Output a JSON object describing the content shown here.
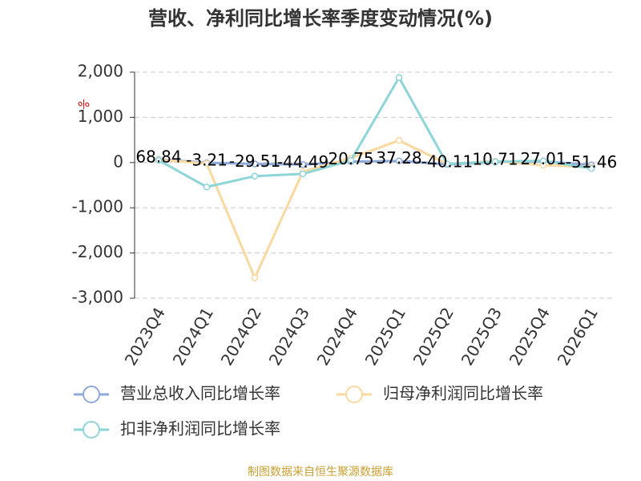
{
  "chart_data": {
    "type": "line",
    "title": "营收、净利同比增长率季度变动情况(%)",
    "y_label": "%",
    "categories": [
      "2023Q4",
      "2024Q1",
      "2024Q2",
      "2024Q3",
      "2024Q4",
      "2025Q1",
      "2025Q2",
      "2025Q3",
      "2025Q4",
      "2026Q1"
    ],
    "series": [
      {
        "name": "营业总收入同比增长率",
        "color": "#8fa9d9",
        "values": [
          68.84,
          -3.21,
          -29.51,
          -44.49,
          20.75,
          37.28,
          -40.11,
          10.71,
          27.01,
          -51.46
        ],
        "show_labels": true
      },
      {
        "name": "归母净利润同比增长率",
        "color": "#fad9a0",
        "values": [
          60,
          -20,
          -2550,
          -200,
          100,
          490,
          -30,
          30,
          -60,
          -100
        ]
      },
      {
        "name": "扣非净利润同比增长率",
        "color": "#8ed5d8",
        "values": [
          50,
          -540,
          -300,
          -250,
          50,
          1880,
          -30,
          20,
          40,
          -130
        ]
      }
    ],
    "ylim": [
      -3000,
      2000
    ],
    "yticks": [
      {
        "value": 2000,
        "label": "2,000"
      },
      {
        "value": 1000,
        "label": "1,000"
      },
      0,
      {
        "value": -1000,
        "label": "-1,000"
      },
      {
        "value": -2000,
        "label": "-2,000"
      },
      {
        "value": -3000,
        "label": "-3,000"
      }
    ],
    "grid": true,
    "source": "制图数据来自恒生聚源数据库"
  }
}
